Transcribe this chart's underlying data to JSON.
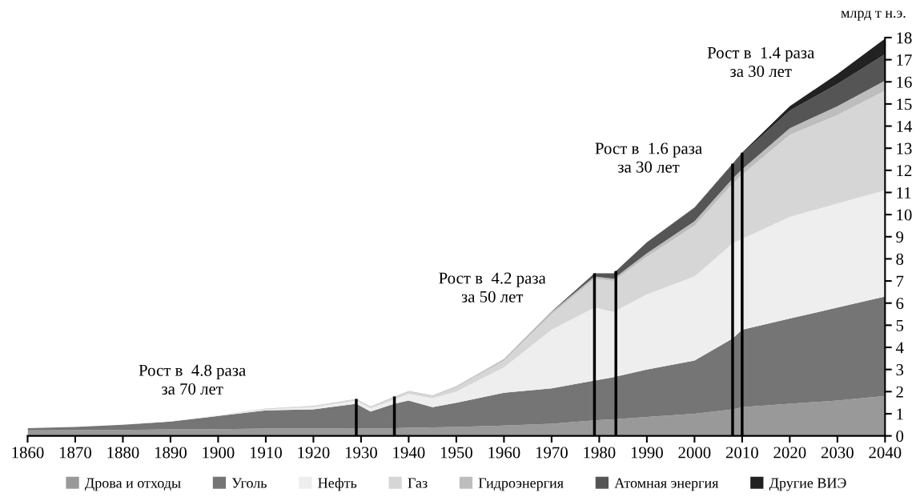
{
  "chart_data": {
    "type": "area",
    "stacked": true,
    "ylabel": "млрд т н.э.",
    "x": [
      1860,
      1870,
      1880,
      1890,
      1900,
      1910,
      1920,
      1929,
      1932,
      1937,
      1940,
      1945,
      1950,
      1960,
      1970,
      1979,
      1983,
      1990,
      2000,
      2008,
      2010,
      2020,
      2030,
      2040
    ],
    "series": [
      {
        "name": "Дрова и отходы",
        "color": "#999999",
        "values": [
          0.25,
          0.26,
          0.27,
          0.29,
          0.3,
          0.33,
          0.33,
          0.35,
          0.33,
          0.35,
          0.37,
          0.38,
          0.4,
          0.47,
          0.55,
          0.7,
          0.75,
          0.85,
          1.0,
          1.2,
          1.3,
          1.45,
          1.6,
          1.8
        ]
      },
      {
        "name": "Уголь",
        "color": "#757575",
        "values": [
          0.1,
          0.14,
          0.23,
          0.36,
          0.6,
          0.82,
          0.87,
          1.1,
          0.77,
          1.1,
          1.23,
          0.92,
          1.1,
          1.48,
          1.6,
          1.8,
          1.9,
          2.15,
          2.4,
          3.2,
          3.5,
          3.85,
          4.2,
          4.5
        ]
      },
      {
        "name": "Нефть",
        "color": "#eeeeee",
        "values": [
          0,
          0,
          0,
          0.01,
          0.02,
          0.05,
          0.1,
          0.15,
          0.15,
          0.2,
          0.3,
          0.4,
          0.5,
          1.15,
          2.65,
          3.3,
          2.95,
          3.4,
          3.8,
          4.3,
          4.1,
          4.6,
          4.7,
          4.8
        ]
      },
      {
        "name": "Газ",
        "color": "#d6d6d6",
        "values": [
          0,
          0,
          0,
          0,
          0.01,
          0.02,
          0.05,
          0.05,
          0.05,
          0.1,
          0.1,
          0.1,
          0.2,
          0.3,
          0.7,
          1.3,
          1.4,
          1.7,
          2.3,
          2.7,
          2.9,
          3.7,
          4.0,
          4.5
        ]
      },
      {
        "name": "Гидроэнергия",
        "color": "#bdbdbd",
        "values": [
          0,
          0,
          0,
          0,
          0,
          0.01,
          0.01,
          0.02,
          0.02,
          0.03,
          0.03,
          0.03,
          0.05,
          0.08,
          0.1,
          0.1,
          0.1,
          0.15,
          0.2,
          0.22,
          0.25,
          0.3,
          0.4,
          0.45
        ]
      },
      {
        "name": "Атомная энергия",
        "color": "#555555",
        "values": [
          0,
          0,
          0,
          0,
          0,
          0,
          0,
          0,
          0,
          0,
          0,
          0,
          0,
          0,
          0.02,
          0.15,
          0.25,
          0.5,
          0.6,
          0.65,
          0.7,
          0.8,
          1.0,
          1.2
        ]
      },
      {
        "name": "Другие ВИЭ",
        "color": "#222222",
        "values": [
          0,
          0,
          0,
          0,
          0,
          0,
          0,
          0,
          0,
          0,
          0,
          0,
          0,
          0,
          0,
          0,
          0,
          0,
          0.02,
          0.03,
          0.05,
          0.2,
          0.45,
          0.7
        ]
      }
    ],
    "xlim": [
      1860,
      2040
    ],
    "xticks": [
      1860,
      1870,
      1880,
      1890,
      1900,
      1910,
      1920,
      1930,
      1940,
      1950,
      1960,
      1970,
      1980,
      1990,
      2000,
      2010,
      2020,
      2030,
      2040
    ],
    "ylim": [
      0,
      18
    ],
    "yticks": [
      0,
      1,
      2,
      3,
      4,
      5,
      6,
      7,
      8,
      9,
      10,
      11,
      12,
      13,
      14,
      15,
      16,
      17,
      18
    ],
    "ref_lines": [
      {
        "axis": "x",
        "value": 1929,
        "color": "#000000"
      },
      {
        "axis": "x",
        "value": 1937,
        "color": "#000000"
      },
      {
        "axis": "x",
        "value": 1979,
        "color": "#000000"
      },
      {
        "axis": "x",
        "value": 1983.5,
        "color": "#000000"
      },
      {
        "axis": "x",
        "value": 2008,
        "color": "#000000"
      },
      {
        "axis": "x",
        "value": 2010,
        "color": "#000000"
      }
    ],
    "annotations": [
      "Рост в  4.8 раза\nза 70 лет",
      "Рост в  4.2 раза\nза 50 лет",
      "Рост в  1.6 раза\nза 30 лет",
      "Рост в  1.4 раза\nза 30 лет"
    ],
    "grid": false,
    "legend": "bottom"
  }
}
